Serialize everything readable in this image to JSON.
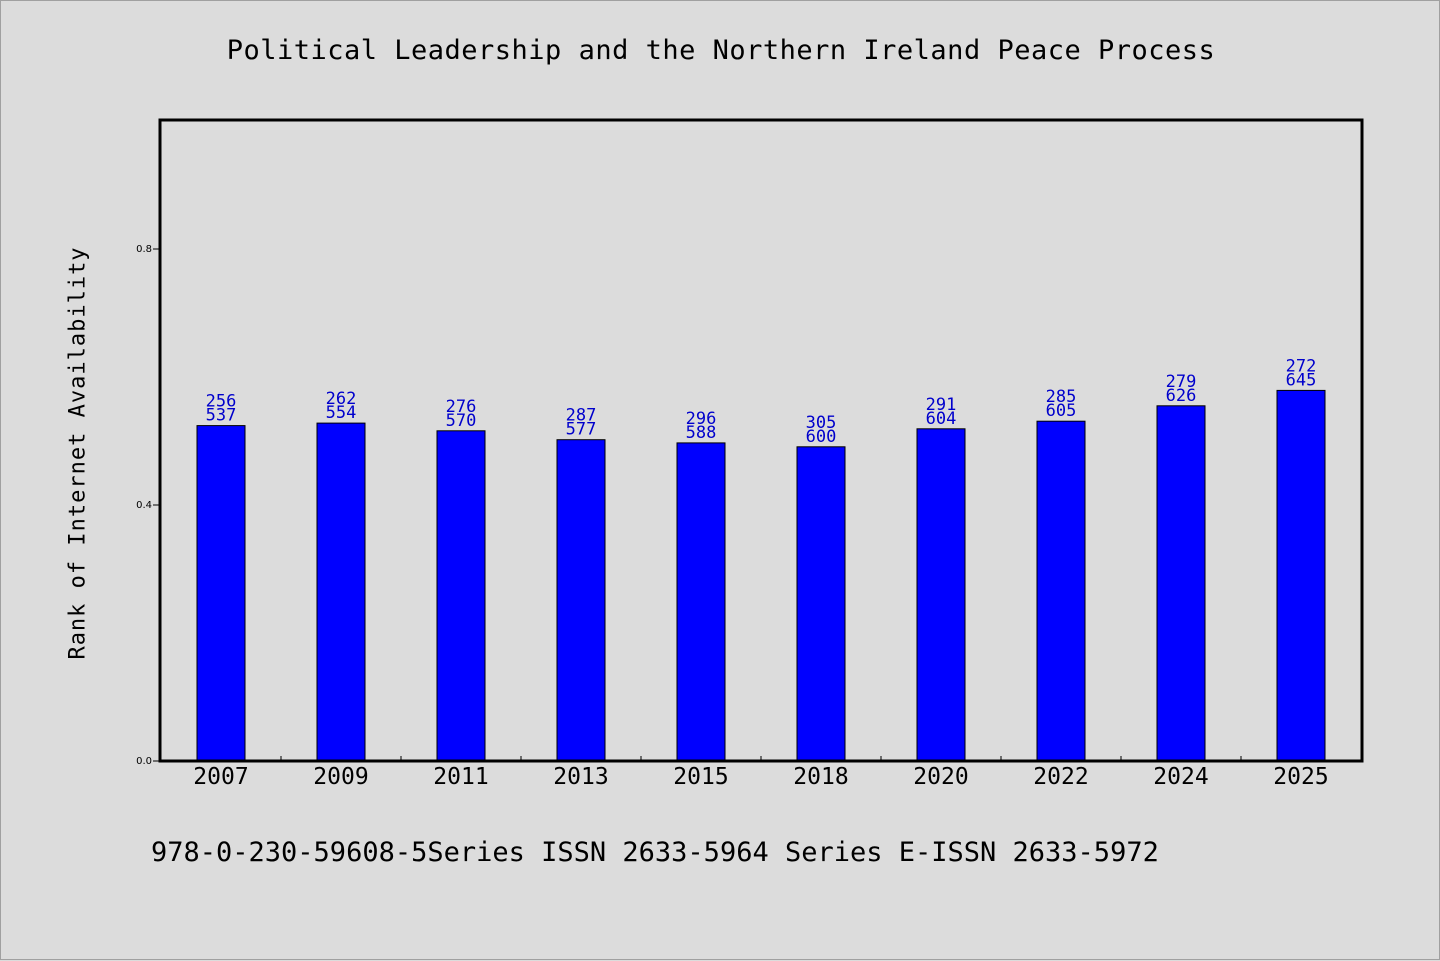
{
  "chart_data": {
    "type": "bar",
    "title": "Political Leadership and the Northern Ireland Peace Process",
    "xlabel": "",
    "ylabel": "Rank of Internet Availability",
    "categories": [
      "2007",
      "2009",
      "2011",
      "2013",
      "2015",
      "2018",
      "2020",
      "2022",
      "2024",
      "2025"
    ],
    "values": [
      0.524,
      0.528,
      0.516,
      0.502,
      0.497,
      0.491,
      0.519,
      0.531,
      0.555,
      0.579
    ],
    "labels_top": [
      "256",
      "262",
      "276",
      "287",
      "296",
      "305",
      "291",
      "285",
      "279",
      "272"
    ],
    "labels_bottom": [
      "537",
      "554",
      "570",
      "577",
      "588",
      "600",
      "604",
      "605",
      "626",
      "645"
    ],
    "ylim": [
      0.0,
      1.0
    ],
    "yticks": [
      0.0,
      0.4,
      0.8
    ],
    "ytick_labels": [
      "0.0",
      "0.4",
      "0.8"
    ],
    "bar_color": "#0000ff",
    "label_color": "#0000cc",
    "grid": false,
    "legend": "none"
  },
  "footer": {
    "text": "978-0-230-59608-5Series ISSN 2633-5964 Series E-ISSN 2633-5972"
  }
}
